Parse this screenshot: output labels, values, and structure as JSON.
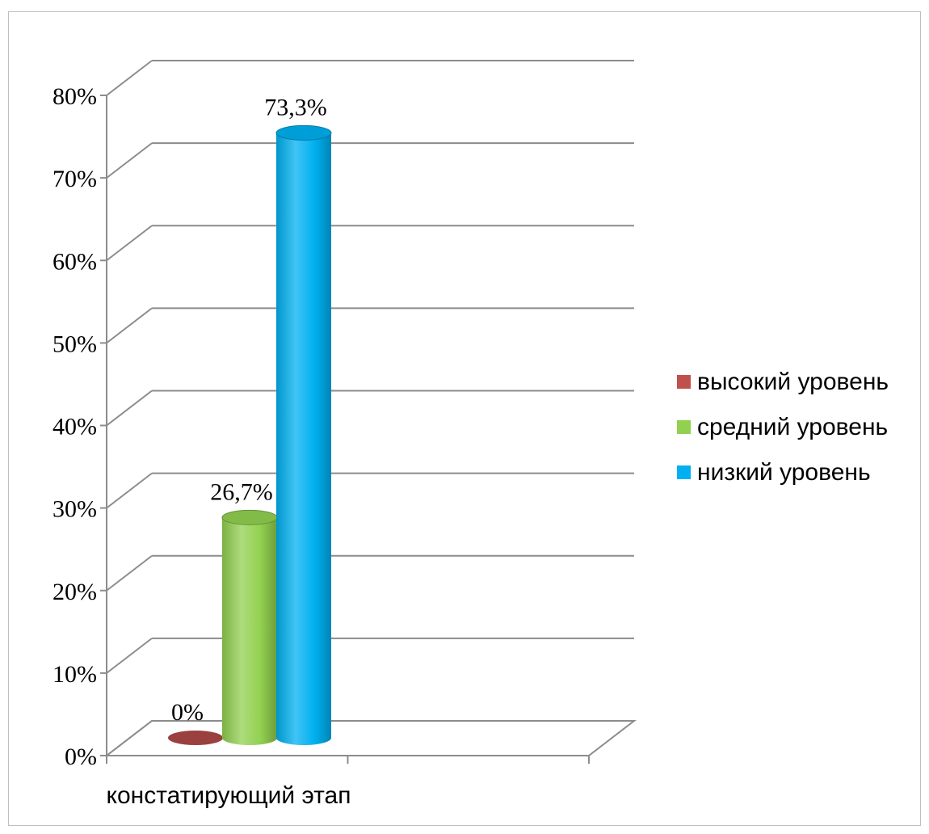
{
  "chart_data": {
    "type": "bar",
    "categories": [
      "констатирующий этап"
    ],
    "series": [
      {
        "name": "высокий уровень",
        "values": [
          0
        ],
        "label": "0%",
        "color": "#c0504d"
      },
      {
        "name": "средний уровень",
        "values": [
          26.7
        ],
        "label": "26,7%",
        "color": "#92d050"
      },
      {
        "name": "низкий уровень",
        "values": [
          73.3
        ],
        "label": "73,3%",
        "color": "#00b0f0"
      }
    ],
    "ylim": [
      0,
      80
    ],
    "y_ticks": [
      "0%",
      "10%",
      "20%",
      "30%",
      "40%",
      "50%",
      "60%",
      "70%",
      "80%"
    ],
    "grid": true,
    "legend_position": "right",
    "style": "3d-cylinder"
  }
}
